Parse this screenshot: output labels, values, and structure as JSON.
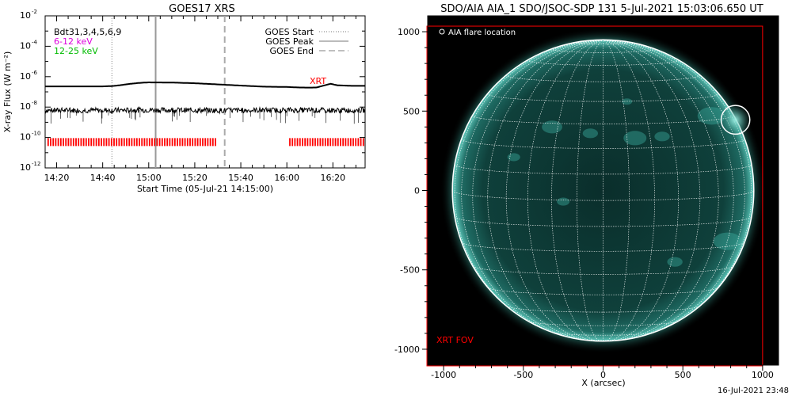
{
  "chart_data": [
    {
      "type": "line",
      "title": "GOES17 XRS",
      "xlabel": "Start Time (05-Jul-21 14:15:00)",
      "ylabel": "X-ray Flux (W m⁻²)",
      "y_scale": "log",
      "ylim": [
        1e-12,
        0.01
      ],
      "xlim": [
        "14:15",
        "16:34"
      ],
      "x_tick_labels": [
        "14:20",
        "14:40",
        "15:00",
        "15:20",
        "15:40",
        "16:00",
        "16:20"
      ],
      "y_tick_labels": [
        {
          "base": "10",
          "exp": "-2"
        },
        {
          "base": "10",
          "exp": "-4"
        },
        {
          "base": "10",
          "exp": "-6"
        },
        {
          "base": "10",
          "exp": "-8"
        },
        {
          "base": "10",
          "exp": "-10"
        },
        {
          "base": "10",
          "exp": "-12"
        }
      ],
      "text_labels": {
        "left_legend": [
          {
            "text": "Bdt31,3,4,5,6,9",
            "color": "#000000"
          },
          {
            "text": "6-12 keV",
            "color": "#dd00dd"
          },
          {
            "text": "12-25 keV",
            "color": "#00bb00"
          }
        ],
        "right_legend": [
          {
            "text": "GOES Start",
            "style": "dotted"
          },
          {
            "text": "GOES Peak",
            "style": "solid"
          },
          {
            "text": "GOES End",
            "style": "dashed"
          }
        ],
        "xrt_annotation": "XRT"
      },
      "event_times": {
        "start": "14:44",
        "peak": "15:03",
        "end": "15:33"
      },
      "series": [
        {
          "key": "long_channel",
          "x": [
            "14:15",
            "14:30",
            "14:40",
            "14:44",
            "14:48",
            "14:52",
            "14:56",
            "15:00",
            "15:10",
            "15:20",
            "15:30",
            "15:40",
            "15:50",
            "16:00",
            "16:05",
            "16:10",
            "16:13",
            "16:16",
            "16:19",
            "16:22",
            "16:28",
            "16:34"
          ],
          "values": [
            2.3e-07,
            2.3e-07,
            2.3e-07,
            2.4e-07,
            2.8e-07,
            3.4e-07,
            3.9e-07,
            4.2e-07,
            4.1e-07,
            3.7e-07,
            3.1e-07,
            2.6e-07,
            2.2e-07,
            2.1e-07,
            1.95e-07,
            1.9e-07,
            1.95e-07,
            2.6e-07,
            3.4e-07,
            2.7e-07,
            2.5e-07,
            2.5e-07
          ]
        },
        {
          "key": "short_channel",
          "x": [
            "14:15",
            "14:30",
            "14:45",
            "15:00",
            "15:15",
            "15:30",
            "15:45",
            "16:00",
            "16:15",
            "16:34"
          ],
          "values": [
            6e-09,
            6.2e-09,
            6.1e-09,
            6.5e-09,
            6.3e-09,
            6e-09,
            6.2e-09,
            6.4e-09,
            6.1e-09,
            6.2e-09
          ]
        }
      ],
      "xrt_coverage": [
        {
          "start": "14:16",
          "end": "15:29"
        },
        {
          "start": "16:01",
          "end": "16:34"
        }
      ],
      "xrt_level": 5e-11,
      "colors": {
        "xrt_bars": "#ff0000",
        "axis": "#000000"
      }
    },
    {
      "type": "image",
      "title": "SDO/AIA AIA_1 SDO/JSOC-SDP 131  5-Jul-2021 15:03:06.650 UT",
      "xlabel": "X (arcsec)",
      "xlim": [
        -1100,
        1100
      ],
      "ylim": [
        -1100,
        1100
      ],
      "x_tick_labels": [
        "-1000",
        "-500",
        "0",
        "500",
        "1000"
      ],
      "y_tick_labels": [
        "1000",
        "500",
        "0",
        "-500",
        "-1000"
      ],
      "sun_radius_arcsec": 945,
      "flare_location_arcsec": [
        830,
        445
      ],
      "flare_marker_radius_arcsec": 90,
      "legend_label": "AIA flare location",
      "fov_label": "XRT FOV",
      "fov_box_arcsec": {
        "x0": -1105,
        "x1": 1000,
        "y0": -1105,
        "y1": 1035
      },
      "colors": {
        "disk": "#0c3a36",
        "limb": "#7fe0d4",
        "grid": "#ffffff",
        "fov": "#ff0000"
      }
    }
  ],
  "footer": {
    "timestamp": "16-Jul-2021 23:48"
  }
}
